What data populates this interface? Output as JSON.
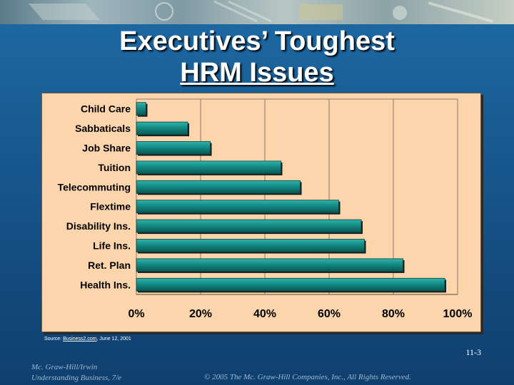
{
  "slide": {
    "title_line1": "Executives’ Toughest",
    "title_line2": "HRM Issues",
    "source_prefix": "Source: ",
    "source_link": "Business2.com",
    "source_suffix": ", June 12, 2001",
    "slide_number": "11-3",
    "footer_publisher": "Mc. Graw-Hill/Irwin",
    "footer_book": "Understanding Business, 7/e",
    "footer_copyright": "© 2005 The Mc. Graw-Hill Companies, Inc., All Rights Reserved."
  },
  "colors": {
    "background": "#17568c",
    "chart_bg": "#fdd5ac",
    "bar_fill": "#138a84",
    "bar_dark": "#0b5551"
  },
  "chart_data": {
    "type": "bar",
    "orientation": "horizontal",
    "title": "",
    "xlabel": "",
    "ylabel": "",
    "categories": [
      "Child Care",
      "Sabbaticals",
      "Job Share",
      "Tuition",
      "Telecommuting",
      "Flextime",
      "Disability Ins.",
      "Life Ins.",
      "Ret. Plan",
      "Health Ins."
    ],
    "values": [
      3,
      16,
      23,
      45,
      51,
      63,
      70,
      71,
      83,
      96
    ],
    "xlim": [
      0,
      100
    ],
    "ticks": [
      0,
      20,
      40,
      60,
      80,
      100
    ],
    "tick_labels": [
      "0%",
      "20%",
      "40%",
      "60%",
      "80%",
      "100%"
    ],
    "grid": true,
    "legend": "none"
  }
}
